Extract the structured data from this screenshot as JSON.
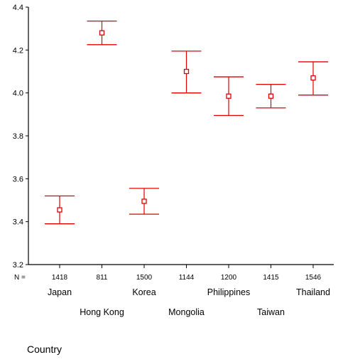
{
  "chart_data": {
    "type": "errorbar",
    "xlabel": "Country",
    "ylabel": "",
    "ylim": [
      3.2,
      4.4
    ],
    "yticks": [
      "3.2",
      "3.4",
      "3.6",
      "3.8",
      "4.0",
      "4.2",
      "4.4"
    ],
    "n_prefix": "N =",
    "grid": false,
    "colors": {
      "marker": "#e00000",
      "axis": "#000000"
    },
    "categories": [
      "Japan",
      "Hong Kong",
      "Korea",
      "Mongolia",
      "Philippines",
      "Taiwan",
      "Thailand"
    ],
    "n": [
      "1418",
      "811",
      "1500",
      "1144",
      "1200",
      "1415",
      "1546"
    ],
    "mean": [
      3.455,
      4.28,
      3.495,
      4.1,
      3.985,
      3.985,
      4.07
    ],
    "lower": [
      3.39,
      4.225,
      3.435,
      4.0,
      3.895,
      3.93,
      3.99
    ],
    "upper": [
      3.52,
      4.335,
      3.555,
      4.195,
      4.075,
      4.04,
      4.145
    ]
  }
}
